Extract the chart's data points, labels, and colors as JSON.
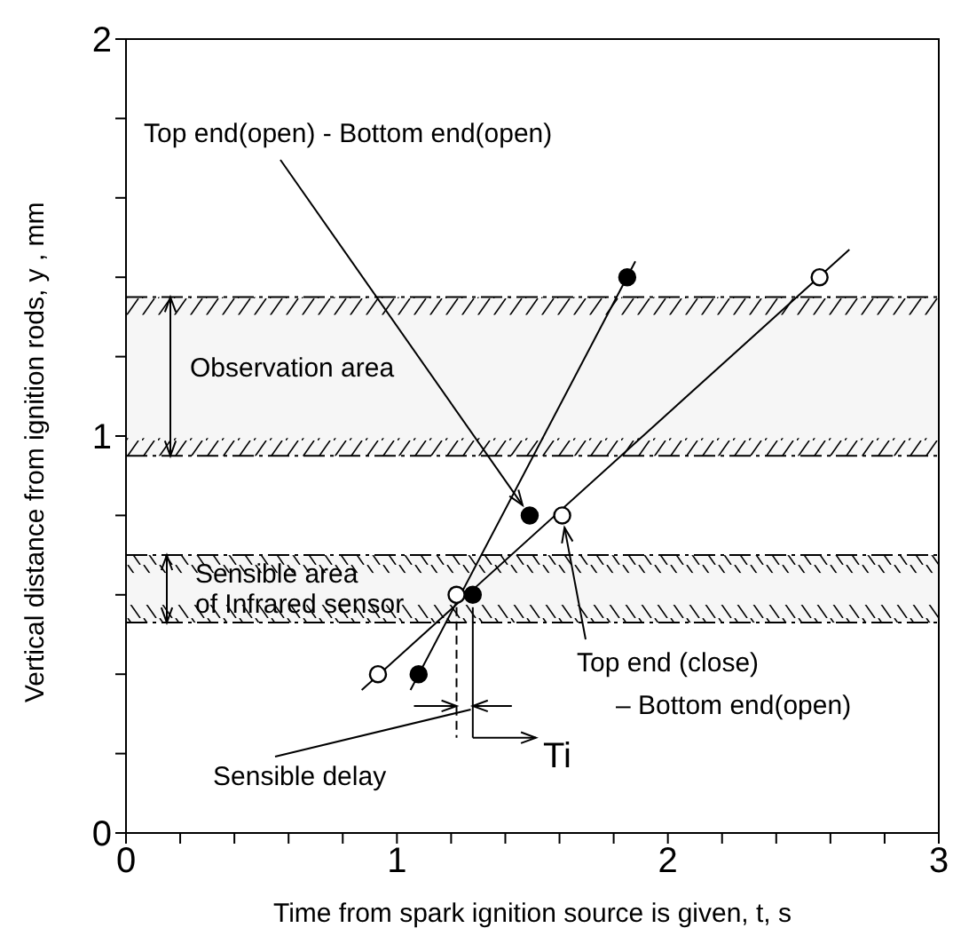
{
  "chart_data": {
    "type": "scatter",
    "xlabel": "Time from spark ignition source is given, t, s",
    "ylabel": "Vertical distance from ignition rods, y , mm",
    "xlim": [
      0,
      3
    ],
    "ylim": [
      0,
      2
    ],
    "xticks": [
      0,
      {
        "value": 0.2,
        "label": null
      },
      {
        "value": 0.4,
        "label": null
      },
      {
        "value": 0.6,
        "label": null
      },
      {
        "value": 0.8,
        "label": null
      },
      1,
      {
        "value": 1.2,
        "label": null
      },
      {
        "value": 1.4,
        "label": null
      },
      {
        "value": 1.6,
        "label": null
      },
      {
        "value": 1.8,
        "label": null
      },
      2,
      {
        "value": 2.2,
        "label": null
      },
      {
        "value": 2.4,
        "label": null
      },
      {
        "value": 2.6,
        "label": null
      },
      {
        "value": 2.8,
        "label": null
      },
      3
    ],
    "yticks": [
      0,
      {
        "value": 0.2,
        "label": null
      },
      {
        "value": 0.4,
        "label": null
      },
      {
        "value": 0.6,
        "label": null
      },
      {
        "value": 0.8,
        "label": null
      },
      1,
      {
        "value": 1.2,
        "label": null
      },
      {
        "value": 1.4,
        "label": null
      },
      {
        "value": 1.6,
        "label": null
      },
      {
        "value": 1.8,
        "label": null
      },
      2
    ],
    "marker": "circle",
    "series": [
      {
        "color": "#000000",
        "x": [
          1.08,
          1.28,
          1.49,
          1.85
        ],
        "values": [
          0.4,
          0.6,
          0.8,
          1.4
        ]
      },
      {
        "color": "#ffffff",
        "x": [
          0.93,
          1.22,
          1.61,
          2.56
        ],
        "values": [
          0.4,
          0.6,
          0.8,
          1.4
        ]
      },
      {
        "type": "line",
        "marker": "none",
        "color": "#000000",
        "x": [
          1.05,
          1.88
        ],
        "values": [
          0.36,
          1.44
        ]
      },
      {
        "type": "line",
        "marker": "none",
        "color": "#000000",
        "x": [
          0.87,
          2.67
        ],
        "values": [
          0.36,
          1.47
        ]
      }
    ],
    "bands": [
      {
        "axis": "y",
        "from": 0.95,
        "to": 1.35,
        "label": "Observation area",
        "color": "#000000"
      },
      {
        "axis": "y",
        "from": 0.53,
        "to": 0.7,
        "label": "Sensible area\nof Infrared sensor",
        "color": "#000000"
      }
    ],
    "annotations": [
      {
        "text": "Top end(open) - Bottom end(open)",
        "x": 1.49,
        "y": 0.8
      },
      {
        "text": "Top end (close)\n– Bottom end(open)",
        "x": 1.61,
        "y": 0.8
      },
      "Sensible delay",
      "Ti"
    ]
  }
}
